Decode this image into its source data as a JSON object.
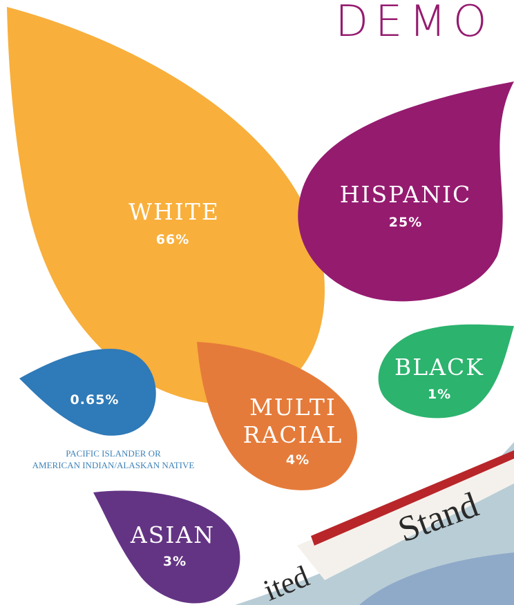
{
  "header": {
    "title": "DEMO"
  },
  "groups": [
    {
      "label": "WHITE",
      "percent": "66%"
    },
    {
      "label": "HISPANIC",
      "percent": "25%"
    },
    {
      "label": "BLACK",
      "percent": "1%"
    },
    {
      "label_lines": [
        "MULTI",
        "RACIAL"
      ],
      "percent": "4%"
    },
    {
      "percent": "0.65%",
      "caption_lines": [
        "PACIFIC ISLANDER OR",
        "AMERICAN INDIAN/ALASKAN NATIVE"
      ]
    },
    {
      "label": "ASIAN",
      "percent": "3%"
    }
  ],
  "photo": {
    "sign_texts": [
      "Stand",
      "ited"
    ]
  }
}
